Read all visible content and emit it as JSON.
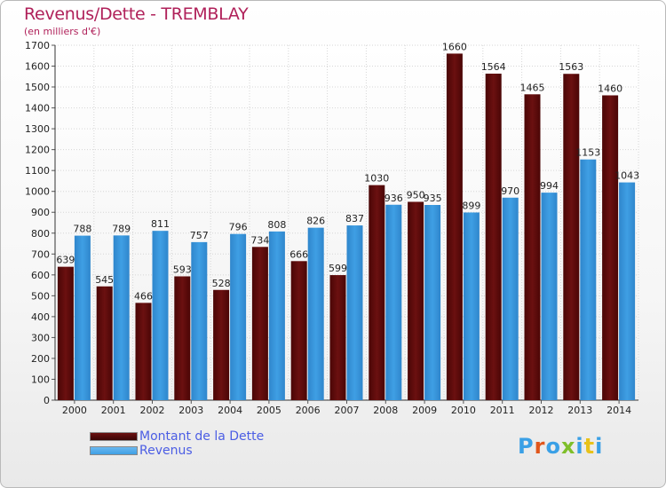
{
  "header": {
    "title": "Revenus/Dette - TREMBLAY",
    "subtitle": "(en milliers d'€)"
  },
  "legend": {
    "debt_label": "Montant de la Dette",
    "revenue_label": "Revenus"
  },
  "logo": {
    "text": "Proxiti",
    "colors": [
      "#3aa0e6",
      "#e0561b",
      "#3aa0e6",
      "#7fbf2a",
      "#3aa0e6",
      "#e8c21a",
      "#3aa0e6"
    ]
  },
  "colors": {
    "debt": "#6b1010",
    "revenue": "#3f9fe4",
    "title": "#b0215a",
    "legend_text": "#4b5de4"
  },
  "chart_data": {
    "type": "bar",
    "title": "Revenus/Dette - TREMBLAY",
    "subtitle": "(en milliers d'€)",
    "categories": [
      "2000",
      "2001",
      "2002",
      "2003",
      "2004",
      "2005",
      "2006",
      "2007",
      "2008",
      "2009",
      "2010",
      "2011",
      "2012",
      "2013",
      "2014"
    ],
    "series": [
      {
        "name": "Montant de la Dette",
        "values": [
          639,
          545,
          466,
          593,
          528,
          734,
          666,
          599,
          1030,
          950,
          1660,
          1564,
          1465,
          1563,
          1460
        ]
      },
      {
        "name": "Revenus",
        "values": [
          788,
          789,
          811,
          757,
          796,
          808,
          826,
          837,
          936,
          935,
          899,
          970,
          994,
          1153,
          1043
        ]
      }
    ],
    "yticks": [
      0,
      100,
      200,
      300,
      400,
      500,
      600,
      700,
      800,
      900,
      1000,
      1100,
      1200,
      1300,
      1400,
      1500,
      1600,
      1700
    ],
    "ylim": [
      0,
      1700
    ],
    "grid": true,
    "legend_position": "bottom-left"
  }
}
